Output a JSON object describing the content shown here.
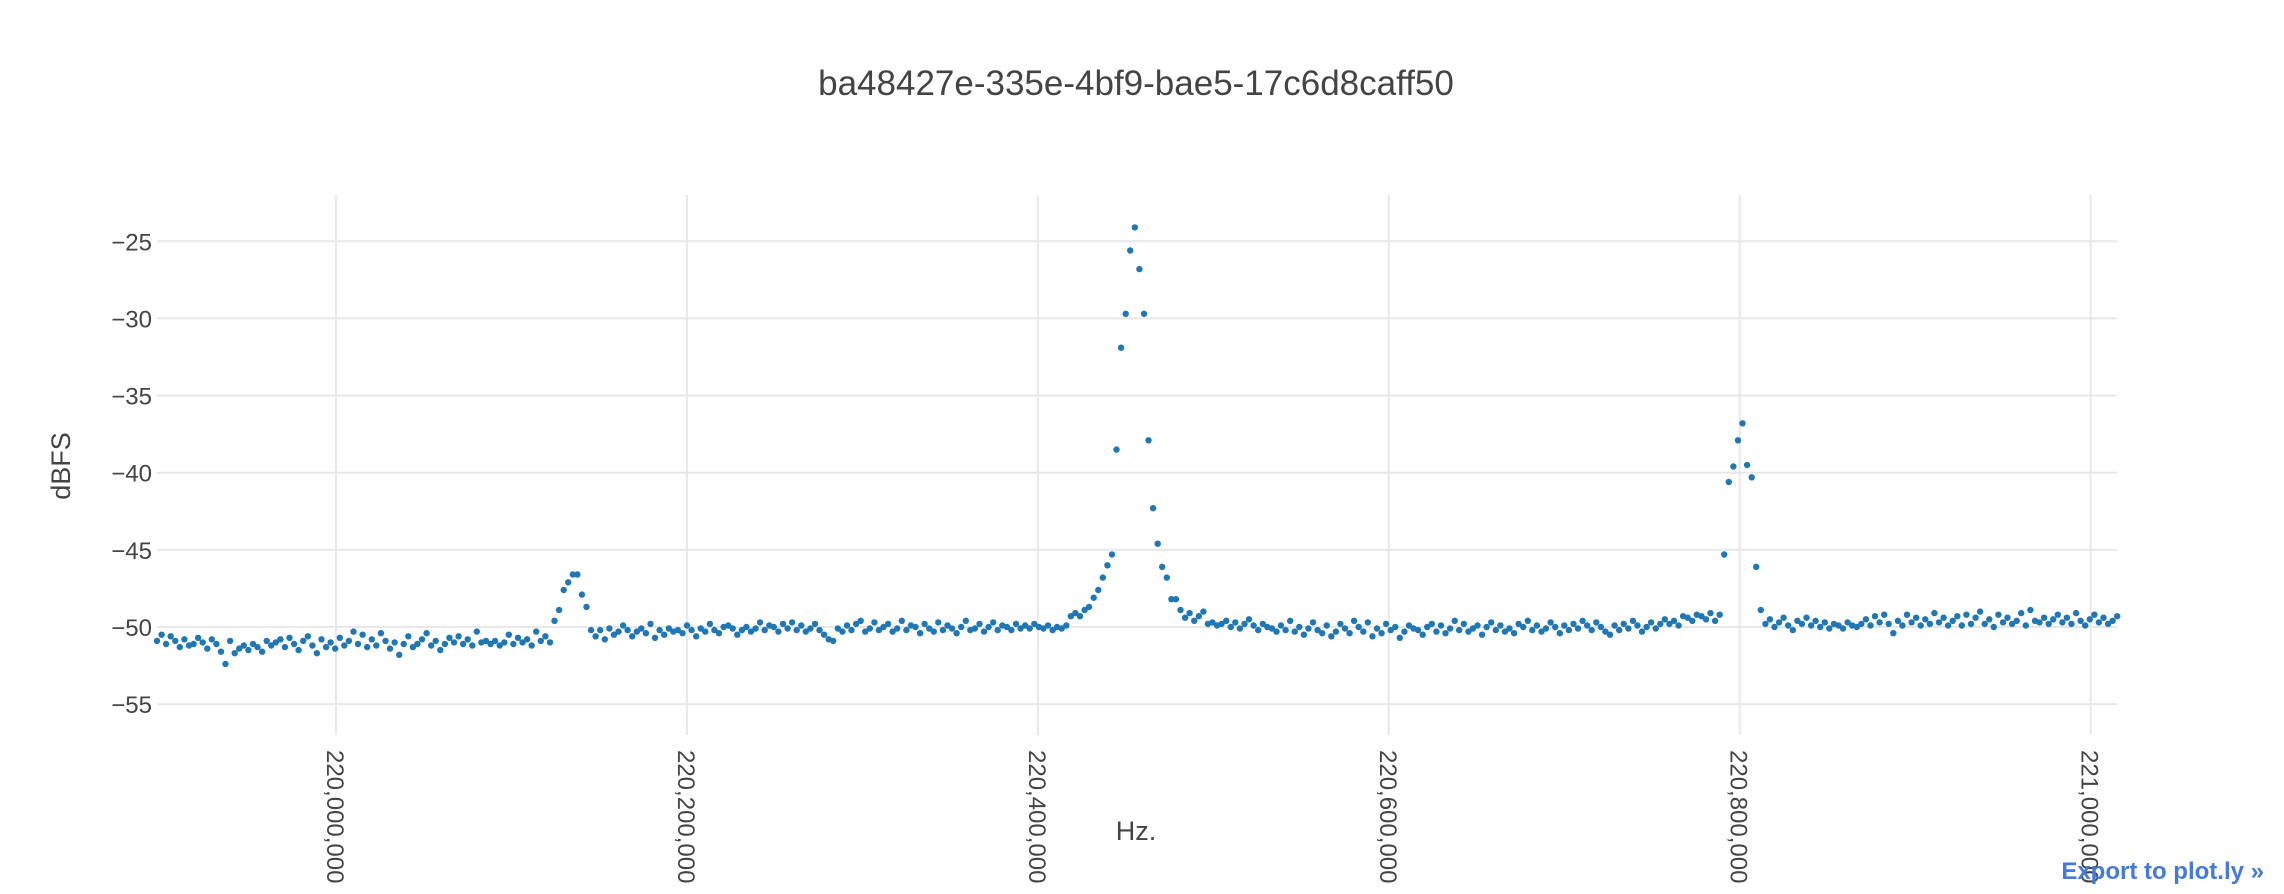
{
  "export_link": "Export to plot.ly »",
  "colors": {
    "marker": "#1f77b4",
    "grid": "#e8e8e8",
    "text": "#444444",
    "link": "#447adb"
  },
  "chart_data": {
    "type": "scatter",
    "title": "ba48427e-335e-4bf9-bae5-17c6d8caff50",
    "xlabel": "Hz.",
    "ylabel": "dBFS",
    "xlim": [
      219898000,
      221015000
    ],
    "ylim": [
      -57,
      -22
    ],
    "grid": true,
    "xticks": [
      220000000,
      220200000,
      220400000,
      220600000,
      220800000,
      221000000
    ],
    "xtick_labels": [
      "220,000,000",
      "220,200,000",
      "220,400,000",
      "220,600,000",
      "220,800,000",
      "221,000,000"
    ],
    "yticks": [
      -25,
      -30,
      -35,
      -40,
      -45,
      -50,
      -55
    ],
    "ytick_labels": [
      "−25",
      "−30",
      "−35",
      "−40",
      "−45",
      "−50",
      "−55"
    ],
    "series": [
      {
        "x_start": 219898000,
        "x_step": 2604,
        "y": [
          -50.9,
          -50.5,
          -51.1,
          -50.6,
          -50.9,
          -51.3,
          -50.8,
          -51.2,
          -51.1,
          -50.7,
          -51.0,
          -51.4,
          -50.8,
          -51.1,
          -51.6,
          -52.4,
          -50.9,
          -51.7,
          -51.4,
          -51.2,
          -51.5,
          -51.1,
          -51.3,
          -51.6,
          -50.9,
          -51.2,
          -51.0,
          -50.8,
          -51.3,
          -50.7,
          -51.1,
          -51.5,
          -50.9,
          -50.6,
          -51.2,
          -51.7,
          -50.8,
          -51.3,
          -51.0,
          -51.4,
          -50.7,
          -51.2,
          -50.9,
          -50.3,
          -51.1,
          -50.5,
          -51.3,
          -50.8,
          -51.2,
          -50.4,
          -50.9,
          -51.4,
          -51.0,
          -51.8,
          -51.1,
          -50.6,
          -51.3,
          -51.1,
          -50.8,
          -50.4,
          -51.2,
          -50.9,
          -51.5,
          -51.1,
          -50.7,
          -51.0,
          -50.6,
          -51.1,
          -50.8,
          -51.2,
          -50.3,
          -51.0,
          -50.9,
          -51.1,
          -50.9,
          -51.2,
          -51.0,
          -50.5,
          -51.1,
          -50.7,
          -51.0,
          -50.8,
          -51.2,
          -50.3,
          -50.9,
          -50.6,
          -51.0,
          -49.6,
          -48.9,
          -47.6,
          -47.1,
          -46.6,
          -46.6,
          -47.9,
          -48.7,
          -50.2,
          -50.6,
          -50.2,
          -50.8,
          -50.1,
          -50.5,
          -50.3,
          -49.9,
          -50.2,
          -50.6,
          -50.3,
          -50.1,
          -50.4,
          -49.8,
          -50.7,
          -50.2,
          -50.5,
          -50.1,
          -50.3,
          -50.2,
          -50.4,
          -49.9,
          -50.2,
          -50.6,
          -50.1,
          -50.3,
          -49.8,
          -50.2,
          -50.4,
          -50.0,
          -49.9,
          -50.1,
          -50.5,
          -50.2,
          -50.0,
          -50.3,
          -50.1,
          -49.7,
          -50.2,
          -49.9,
          -50.0,
          -50.3,
          -49.8,
          -50.1,
          -49.7,
          -50.2,
          -49.9,
          -50.3,
          -50.1,
          -49.8,
          -50.2,
          -50.5,
          -50.8,
          -50.9,
          -50.1,
          -50.3,
          -49.9,
          -50.2,
          -49.8,
          -49.6,
          -50.3,
          -50.1,
          -49.7,
          -50.2,
          -50.0,
          -49.8,
          -50.3,
          -50.1,
          -49.6,
          -50.2,
          -49.9,
          -50.0,
          -50.4,
          -49.8,
          -50.1,
          -50.3,
          -49.7,
          -50.2,
          -49.9,
          -50.1,
          -50.4,
          -50.0,
          -49.6,
          -50.2,
          -50.1,
          -49.8,
          -50.3,
          -50.0,
          -49.7,
          -50.2,
          -49.9,
          -50.0,
          -50.2,
          -49.8,
          -50.1,
          -49.9,
          -50.1,
          -49.8,
          -50.0,
          -50.1,
          -49.9,
          -50.2,
          -50.0,
          -50.1,
          -49.9,
          -49.3,
          -49.1,
          -49.3,
          -48.9,
          -48.7,
          -48.1,
          -47.6,
          -46.8,
          -46.0,
          -45.3,
          -38.5,
          -31.9,
          -29.7,
          -25.6,
          -24.1,
          -26.8,
          -29.7,
          -37.9,
          -42.3,
          -44.6,
          -46.1,
          -46.8,
          -48.2,
          -48.2,
          -48.9,
          -49.4,
          -49.1,
          -49.6,
          -49.3,
          -49.0,
          -49.8,
          -49.7,
          -49.9,
          -49.8,
          -49.6,
          -50.0,
          -49.7,
          -50.1,
          -49.8,
          -49.5,
          -49.9,
          -50.2,
          -49.8,
          -50.0,
          -50.1,
          -50.3,
          -49.9,
          -50.2,
          -49.6,
          -50.3,
          -50.0,
          -50.5,
          -50.1,
          -49.7,
          -50.2,
          -50.4,
          -49.9,
          -50.6,
          -50.3,
          -49.8,
          -50.1,
          -50.4,
          -49.6,
          -50.0,
          -50.3,
          -49.7,
          -50.6,
          -50.1,
          -50.4,
          -49.8,
          -50.2,
          -50.0,
          -50.7,
          -50.3,
          -49.9,
          -50.1,
          -50.2,
          -50.5,
          -50.0,
          -49.8,
          -50.3,
          -49.9,
          -50.4,
          -50.1,
          -49.6,
          -50.2,
          -49.8,
          -50.3,
          -50.1,
          -49.9,
          -50.5,
          -50.0,
          -49.7,
          -50.2,
          -49.9,
          -50.3,
          -50.1,
          -50.4,
          -49.8,
          -50.0,
          -49.6,
          -50.2,
          -49.9,
          -50.3,
          -50.1,
          -49.7,
          -50.0,
          -50.4,
          -49.9,
          -50.2,
          -49.8,
          -50.1,
          -49.6,
          -49.9,
          -50.2,
          -49.7,
          -50.0,
          -50.3,
          -50.5,
          -49.9,
          -50.2,
          -49.8,
          -50.1,
          -49.6,
          -49.9,
          -50.3,
          -50.0,
          -49.7,
          -50.1,
          -49.8,
          -49.5,
          -49.8,
          -49.6,
          -49.9,
          -49.3,
          -49.4,
          -49.6,
          -49.2,
          -49.3,
          -49.5,
          -49.1,
          -49.6,
          -49.2,
          -45.3,
          -40.6,
          -39.6,
          -37.9,
          -36.8,
          -39.5,
          -40.3,
          -46.1,
          -48.9,
          -49.8,
          -49.5,
          -50.0,
          -49.7,
          -49.4,
          -49.9,
          -50.2,
          -49.6,
          -49.8,
          -49.4,
          -49.9,
          -49.6,
          -50.0,
          -49.7,
          -50.1,
          -49.8,
          -49.9,
          -50.1,
          -49.7,
          -49.9,
          -50.0,
          -49.8,
          -49.5,
          -49.9,
          -49.3,
          -49.7,
          -49.2,
          -49.8,
          -50.4,
          -49.6,
          -49.9,
          -49.2,
          -49.7,
          -49.4,
          -49.9,
          -49.5,
          -49.8,
          -49.1,
          -49.7,
          -49.4,
          -49.9,
          -49.6,
          -49.3,
          -49.9,
          -49.2,
          -49.8,
          -49.4,
          -49.0,
          -49.8,
          -49.5,
          -50.0,
          -49.2,
          -49.7,
          -49.4,
          -49.8,
          -49.6,
          -49.1,
          -49.9,
          -48.9,
          -49.6,
          -49.7,
          -49.4,
          -49.8,
          -49.5,
          -49.2,
          -49.7,
          -49.4,
          -49.8,
          -49.1,
          -49.6,
          -49.9,
          -49.5,
          -49.2,
          -49.7,
          -49.4,
          -49.8,
          -49.6,
          -49.3,
          -49.8,
          -49.5,
          -49.2,
          -49.7,
          -48.9,
          -49.6,
          -49.9,
          -49.4,
          -49.7,
          -49.5,
          -50.1,
          -49.3,
          -49.6,
          -49.0,
          -49.3,
          -49.7,
          -49.4,
          -49.5,
          -49.9
        ]
      }
    ]
  }
}
